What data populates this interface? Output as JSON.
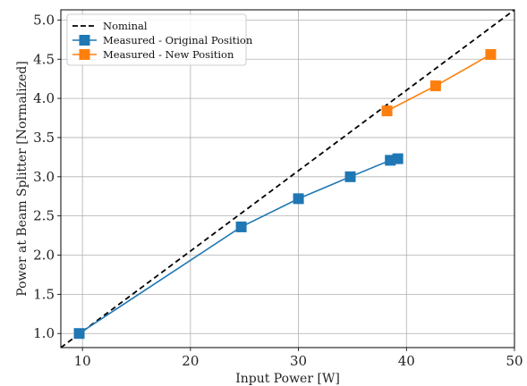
{
  "chart_data": {
    "type": "line",
    "xlabel": "Input Power [W]",
    "ylabel": "Power at Beam Splitter [Normalized]",
    "xlim": [
      8,
      50
    ],
    "ylim": [
      0.82,
      5.13
    ],
    "xticks": [
      10,
      20,
      30,
      40,
      50
    ],
    "yticks": [
      1.0,
      1.5,
      2.0,
      2.5,
      3.0,
      3.5,
      4.0,
      4.5,
      5.0
    ],
    "xtick_labels": [
      "10",
      "20",
      "30",
      "40",
      "50"
    ],
    "ytick_labels": [
      "1.0",
      "1.5",
      "2.0",
      "2.5",
      "3.0",
      "3.5",
      "4.0",
      "4.5",
      "5.0"
    ],
    "grid": true,
    "legend_position": "top-left",
    "series": [
      {
        "name": "Nominal",
        "style": "dashed",
        "color": "#000000",
        "x": [
          8,
          50
        ],
        "y": [
          0.82,
          5.13
        ]
      },
      {
        "name": "Measured - Original Position",
        "style": "line-square",
        "color": "#1f77b4",
        "x": [
          9.7,
          24.7,
          30.0,
          34.8,
          38.5,
          39.2
        ],
        "y": [
          1.0,
          2.36,
          2.72,
          3.0,
          3.21,
          3.23
        ]
      },
      {
        "name": "Measured - New Position",
        "style": "line-square",
        "color": "#ff7f0e",
        "x": [
          38.2,
          42.7,
          47.8
        ],
        "y": [
          3.84,
          4.16,
          4.56
        ]
      }
    ]
  }
}
